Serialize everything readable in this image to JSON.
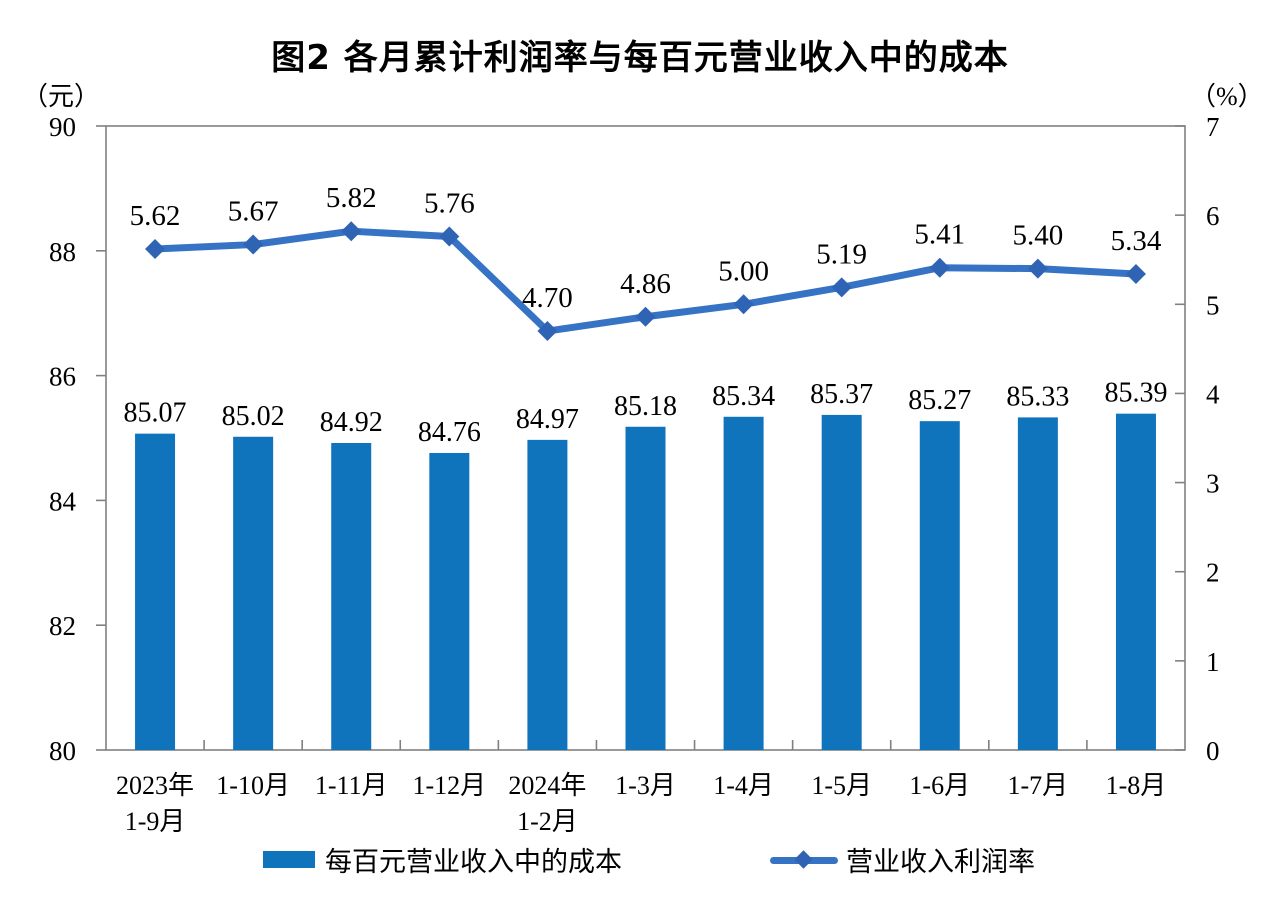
{
  "title": "图2 各月累计利润率与每百元营业收入中的成本",
  "axes": {
    "left_unit": "（元）",
    "right_unit": "（%）"
  },
  "chart_data": {
    "type": "bar",
    "subtype": "bar+line combo, dual axis",
    "categories": [
      [
        "2023年",
        "1-9月"
      ],
      [
        "1-10月"
      ],
      [
        "1-11月"
      ],
      [
        "1-12月"
      ],
      [
        "2024年",
        "1-2月"
      ],
      [
        "1-3月"
      ],
      [
        "1-4月"
      ],
      [
        "1-5月"
      ],
      [
        "1-6月"
      ],
      [
        "1-7月"
      ],
      [
        "1-8月"
      ]
    ],
    "series": [
      {
        "name": "每百元营业收入中的成本",
        "type": "bar",
        "axis": "left",
        "values": [
          85.07,
          85.02,
          84.92,
          84.76,
          84.97,
          85.18,
          85.34,
          85.37,
          85.27,
          85.33,
          85.39
        ]
      },
      {
        "name": "营业收入利润率",
        "type": "line",
        "axis": "right",
        "values": [
          5.62,
          5.67,
          5.82,
          5.76,
          4.7,
          4.86,
          5.0,
          5.19,
          5.41,
          5.4,
          5.34
        ]
      }
    ],
    "title": "图2 各月累计利润率与每百元营业收入中的成本",
    "left_axis": {
      "unit": "（元）",
      "min": 80,
      "max": 90,
      "ticks": [
        80,
        82,
        84,
        86,
        88,
        90
      ]
    },
    "right_axis": {
      "unit": "（%）",
      "min": 0,
      "max": 7,
      "ticks": [
        0,
        1,
        2,
        3,
        4,
        5,
        6,
        7
      ]
    },
    "grid": false,
    "legend_position": "bottom",
    "data_labels": true
  },
  "legend": {
    "bar_label": "每百元营业收入中的成本",
    "line_label": "营业收入利润率"
  },
  "colors": {
    "bar": "#1074BD",
    "line": "#3673C5",
    "marker": "#2F63B4",
    "axis": "#808080",
    "label": "#000000"
  }
}
